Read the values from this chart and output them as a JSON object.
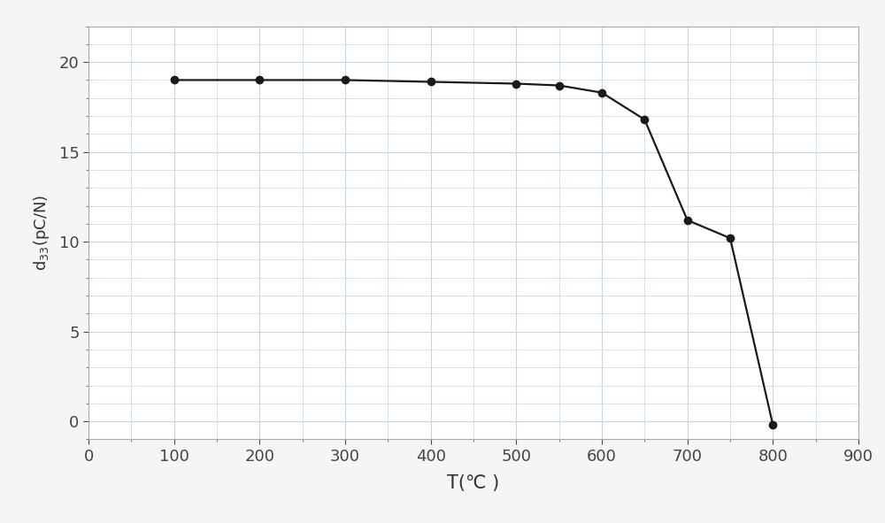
{
  "x": [
    100,
    200,
    300,
    400,
    500,
    550,
    600,
    650,
    700,
    750,
    800
  ],
  "y": [
    19.0,
    19.0,
    19.0,
    18.9,
    18.8,
    18.7,
    18.3,
    16.8,
    11.2,
    10.2,
    -0.2
  ],
  "xlabel": "T(℃ )",
  "ylabel": "d₃₃(pC·N⁻¹)",
  "xlim": [
    0,
    900
  ],
  "ylim": [
    -1,
    22
  ],
  "xticks": [
    0,
    100,
    200,
    300,
    400,
    500,
    600,
    700,
    800,
    900
  ],
  "yticks": [
    0,
    5,
    10,
    15,
    20
  ],
  "line_color": "#1a1a1a",
  "marker_color": "#1a1a1a",
  "marker_size": 6,
  "line_width": 1.6,
  "grid_color": "#c5d5e5",
  "background_color": "#ffffff",
  "outer_bg": "#f5f5f5",
  "xlabel_fontsize": 15,
  "ylabel_fontsize": 13,
  "tick_fontsize": 13
}
